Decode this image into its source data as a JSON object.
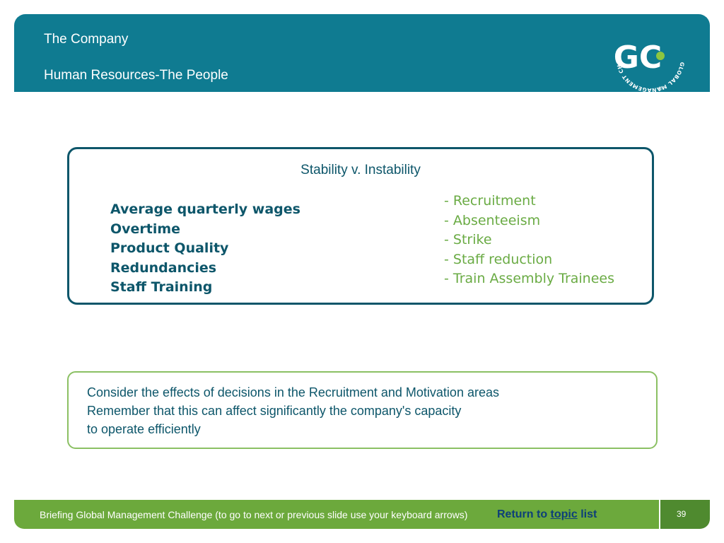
{
  "header": {
    "title": "The Company",
    "subtitle": "Human Resources-The People",
    "logo": {
      "monogram": "GC",
      "ring_text": "GLOBAL MANAGEMENT CHALLENGE",
      "registered": "®"
    }
  },
  "stability_box": {
    "title": "Stability v. Instability",
    "factors": [
      "Average quarterly wages",
      "Overtime",
      "Product Quality",
      "Redundancies",
      "Staff Training"
    ],
    "issues": [
      "- Recruitment",
      "- Absenteeism",
      "- Strike",
      "- Staff reduction",
      "- Train Assembly Trainees"
    ]
  },
  "note_box": {
    "lines": [
      "Consider the effects of decisions in the Recruitment and Motivation areas",
      "Remember that this can affect significantly the company's capacity",
      "to operate efficiently"
    ]
  },
  "footer": {
    "text": "Briefing Global Management Challenge (to go to next or previous slide use your keyboard arrows)",
    "return_prefix": "Return to ",
    "return_link": "topic",
    "return_suffix": " list",
    "page_number": "39"
  },
  "colors": {
    "header_teal": "#0f7b91",
    "dark_teal": "#0d566a",
    "green": "#6aab44",
    "footer_green": "#6ca93c",
    "page_green": "#4f8a2f",
    "link_navy": "#0d3f79"
  }
}
